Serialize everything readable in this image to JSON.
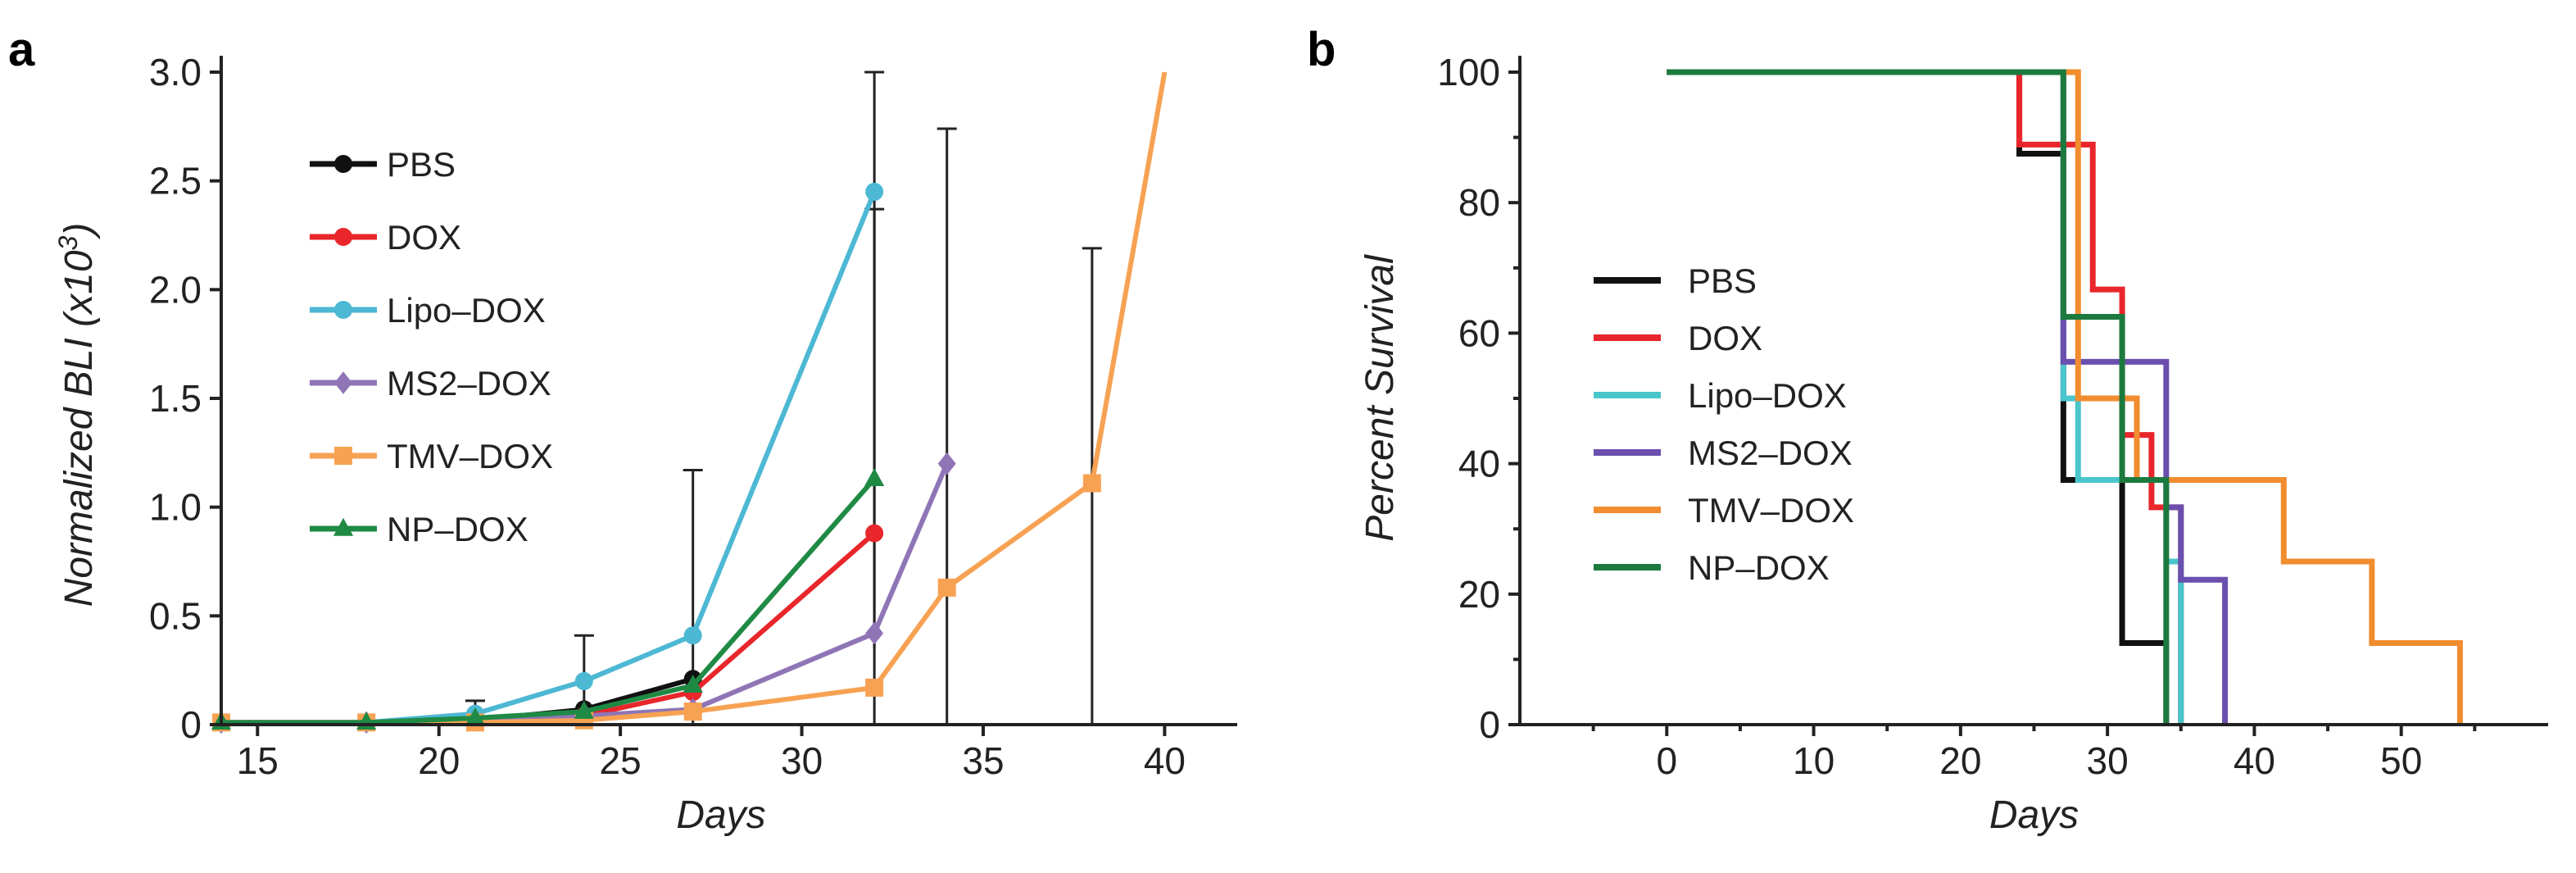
{
  "chart_data": [
    {
      "panel": "a",
      "type": "line",
      "xlabel": "Days",
      "ylabel": "Normalized BLI (x10",
      "ylabel_exp": "3",
      "ylabel_close": ")",
      "xlim": [
        14,
        42
      ],
      "ylim": [
        0,
        3.0
      ],
      "xticks": [
        15,
        20,
        25,
        30,
        35,
        40
      ],
      "yticks": [
        0,
        0.5,
        1.0,
        1.5,
        2.0,
        2.5,
        3.0
      ],
      "ytick_labels": [
        "0",
        "0.5",
        "1.0",
        "1.5",
        "2.0",
        "2.5",
        "3.0"
      ],
      "legend_position": "upper-left",
      "series": [
        {
          "name": "PBS",
          "color": "#111111",
          "marker": "circle",
          "x": [
            14,
            18,
            21,
            24,
            27
          ],
          "y": [
            0.01,
            0.01,
            0.02,
            0.07,
            0.21
          ]
        },
        {
          "name": "DOX",
          "color": "#e8262b",
          "marker": "circle",
          "x": [
            14,
            18,
            21,
            24,
            27,
            32
          ],
          "y": [
            0.01,
            0.01,
            0.02,
            0.04,
            0.15,
            0.88
          ]
        },
        {
          "name": "Lipo–DOX",
          "color": "#4db8d4",
          "marker": "circle",
          "x": [
            14,
            18,
            21,
            24,
            27,
            32
          ],
          "y": [
            0.01,
            0.01,
            0.05,
            0.2,
            0.41,
            2.45
          ]
        },
        {
          "name": "MS2–DOX",
          "color": "#8f75b6",
          "marker": "diamond",
          "x": [
            14,
            18,
            21,
            24,
            27,
            32,
            34
          ],
          "y": [
            0.01,
            0.01,
            0.02,
            0.04,
            0.07,
            0.42,
            1.2
          ]
        },
        {
          "name": "TMV–DOX",
          "color": "#f7a253",
          "marker": "square",
          "x": [
            14,
            18,
            21,
            24,
            27,
            32,
            34,
            38,
            40
          ],
          "y": [
            0.01,
            0.01,
            0.01,
            0.02,
            0.06,
            0.17,
            0.63,
            1.11,
            3.0
          ]
        },
        {
          "name": "NP–DOX",
          "color": "#1f8a44",
          "marker": "triangle",
          "x": [
            14,
            18,
            21,
            24,
            27,
            32
          ],
          "y": [
            0.01,
            0.01,
            0.03,
            0.06,
            0.18,
            1.13
          ]
        }
      ],
      "error_bars": [
        {
          "x": 21,
          "y": 0.05,
          "low": 0.0,
          "high": 0.11
        },
        {
          "x": 24,
          "y": 0.2,
          "low": 0.0,
          "high": 0.41
        },
        {
          "x": 27,
          "y": 0.21,
          "low": 0.0,
          "high": 1.17
        },
        {
          "x": 32,
          "y": 2.45,
          "low": 0.0,
          "high": 3.0
        },
        {
          "x": 32,
          "y": 1.13,
          "low": 0.35,
          "high": 2.37
        },
        {
          "x": 34,
          "y": 1.2,
          "low": 0.0,
          "high": 2.74
        },
        {
          "x": 38,
          "y": 1.11,
          "low": 0.0,
          "high": 2.19
        }
      ]
    },
    {
      "panel": "b",
      "type": "step",
      "xlabel": "Days",
      "ylabel": "Percent Survival",
      "xlim": [
        -10,
        60
      ],
      "ylim": [
        0,
        100
      ],
      "xticks": [
        0,
        10,
        20,
        30,
        40,
        50
      ],
      "yticks": [
        0,
        20,
        40,
        60,
        80,
        100
      ],
      "legend_position": "center-left",
      "series": [
        {
          "name": "PBS",
          "color": "#111111",
          "x": [
            0,
            24,
            27,
            31,
            34
          ],
          "y": [
            100,
            87.5,
            37.5,
            12.5,
            0
          ]
        },
        {
          "name": "DOX",
          "color": "#e8262b",
          "x": [
            0,
            24,
            29,
            31,
            33,
            35
          ],
          "y": [
            100,
            88.9,
            66.7,
            44.4,
            33.3,
            0
          ]
        },
        {
          "name": "Lipo–DOX",
          "color": "#4ac5cc",
          "x": [
            0,
            27,
            28,
            34,
            35
          ],
          "y": [
            100,
            50,
            37.5,
            25,
            0
          ]
        },
        {
          "name": "MS2–DOX",
          "color": "#6a4fae",
          "x": [
            0,
            27,
            34,
            35,
            38
          ],
          "y": [
            100,
            55.6,
            33.3,
            22.2,
            0
          ]
        },
        {
          "name": "TMV–DOX",
          "color": "#f18c2f",
          "x": [
            0,
            28,
            32,
            33,
            42,
            48,
            54
          ],
          "y": [
            100,
            50,
            37.5,
            37.5,
            25,
            12.5,
            0
          ]
        },
        {
          "name": "NP–DOX",
          "color": "#1c7a3f",
          "x": [
            0,
            27,
            31,
            34
          ],
          "y": [
            100,
            62.5,
            37.5,
            0
          ]
        }
      ]
    }
  ]
}
